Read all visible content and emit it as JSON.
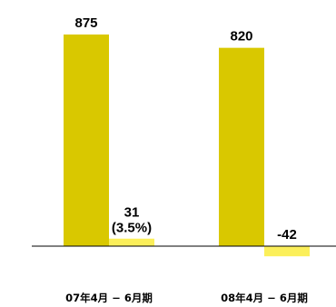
{
  "chart_data": {
    "type": "bar",
    "categories": [
      "07年4月 − 6月期",
      "08年4月 − 6月期"
    ],
    "series": [
      {
        "values": [
          875,
          820
        ],
        "color": "#d9c800",
        "labels": [
          "875",
          "820"
        ]
      },
      {
        "values": [
          31,
          -42
        ],
        "color": "#fbef5a",
        "labels": [
          "31",
          "-42"
        ],
        "sublabels": [
          "(3.5%)",
          ""
        ]
      }
    ],
    "title": "",
    "xlabel": "",
    "ylabel": "",
    "ylim": [
      -105,
      1000
    ],
    "grid": false,
    "axis_line_color": "#000000"
  }
}
